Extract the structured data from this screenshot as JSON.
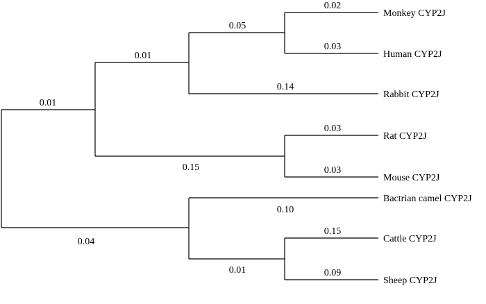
{
  "tree": {
    "branches": [
      {
        "id": "root-upper",
        "label": "0.01"
      },
      {
        "id": "root-lower",
        "label": "0.04"
      },
      {
        "id": "primate-rabbit-rodent",
        "label": "0.01"
      },
      {
        "id": "rodent-clade",
        "label": "0.15"
      },
      {
        "id": "primate-clade",
        "label": "0.05"
      },
      {
        "id": "rabbit",
        "label": "0.14"
      },
      {
        "id": "monkey",
        "label": "0.02"
      },
      {
        "id": "human",
        "label": "0.03"
      },
      {
        "id": "rat",
        "label": "0.03"
      },
      {
        "id": "mouse",
        "label": "0.03"
      },
      {
        "id": "camel",
        "label": "0.10"
      },
      {
        "id": "ruminant-clade",
        "label": "0.01"
      },
      {
        "id": "cattle",
        "label": "0.15"
      },
      {
        "id": "sheep",
        "label": "0.09"
      }
    ],
    "leaves": [
      {
        "id": "monkey",
        "label": "Monkey CYP2J"
      },
      {
        "id": "human",
        "label": "Human CYP2J"
      },
      {
        "id": "rabbit",
        "label": "Rabbit CYP2J"
      },
      {
        "id": "rat",
        "label": "Rat CYP2J"
      },
      {
        "id": "mouse",
        "label": "Mouse CYP2J"
      },
      {
        "id": "camel",
        "label": "Bactrian camel CYP2J"
      },
      {
        "id": "cattle",
        "label": "Cattle CYP2J"
      },
      {
        "id": "sheep",
        "label": "Sheep CYP2J"
      }
    ]
  }
}
